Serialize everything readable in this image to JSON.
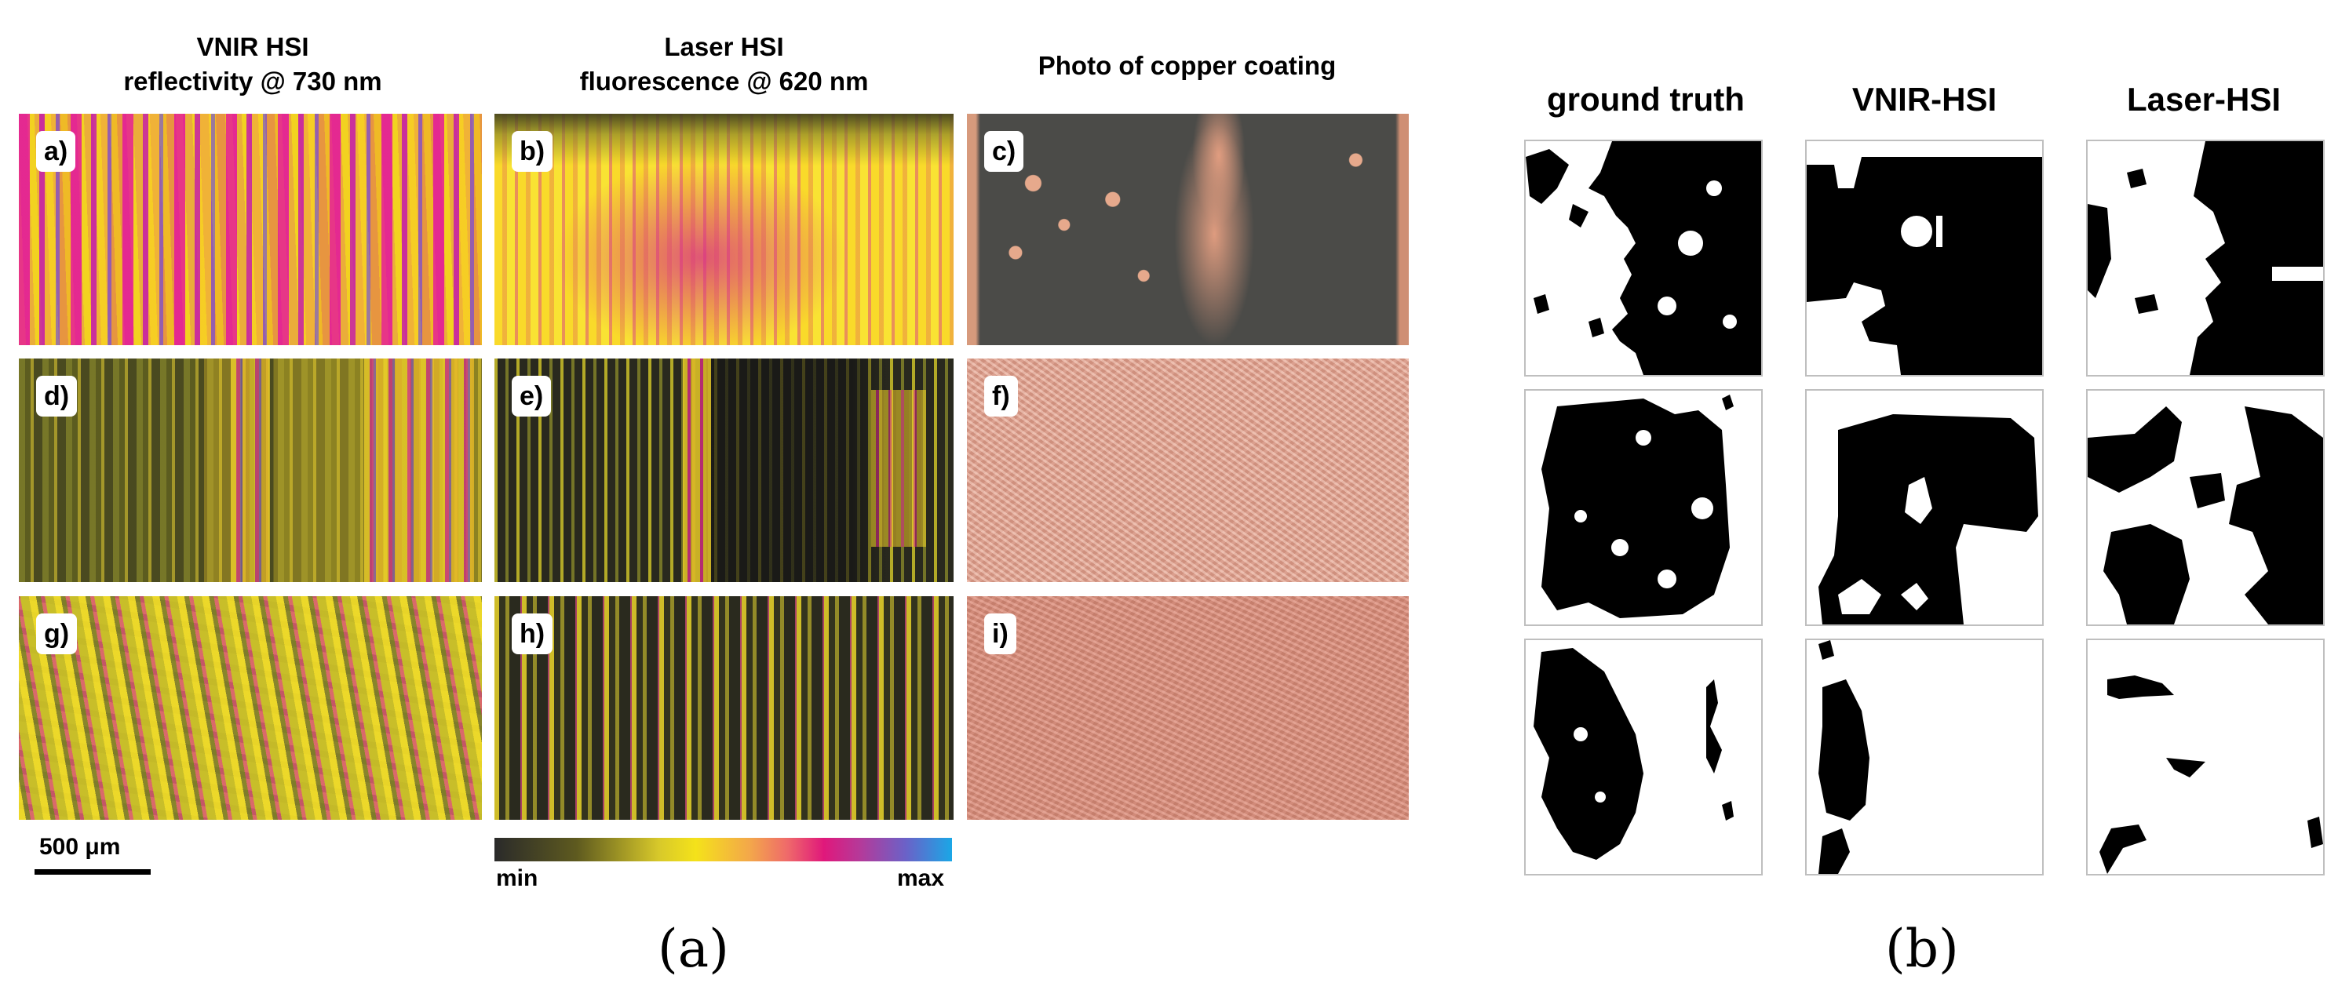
{
  "panel_a": {
    "columns": [
      {
        "title_line1": "VNIR HSI",
        "title_line2": "reflectivity @ 730 nm"
      },
      {
        "title_line1": "Laser HSI",
        "title_line2": "fluorescence @ 620 nm"
      },
      {
        "title_line1": "Photo of copper coating",
        "title_line2": ""
      }
    ],
    "panel_labels": [
      "a)",
      "b)",
      "c)",
      "d)",
      "e)",
      "f)",
      "g)",
      "h)",
      "i)"
    ],
    "scale_bar_label": "500 μm",
    "colorbar": {
      "min_label": "min",
      "max_label": "max"
    },
    "subfigure_label": "(a)"
  },
  "panel_b": {
    "columns": [
      "ground truth",
      "VNIR-HSI",
      "Laser-HSI"
    ],
    "subfigure_label": "(b)"
  },
  "colors": {
    "colormap": [
      "#2a2a2a",
      "#5e5a1f",
      "#f4e21a",
      "#f3a64b",
      "#e0187b",
      "#6a62c8",
      "#1aa7e6"
    ],
    "mask_black": "#000000",
    "mask_white": "#ffffff"
  }
}
